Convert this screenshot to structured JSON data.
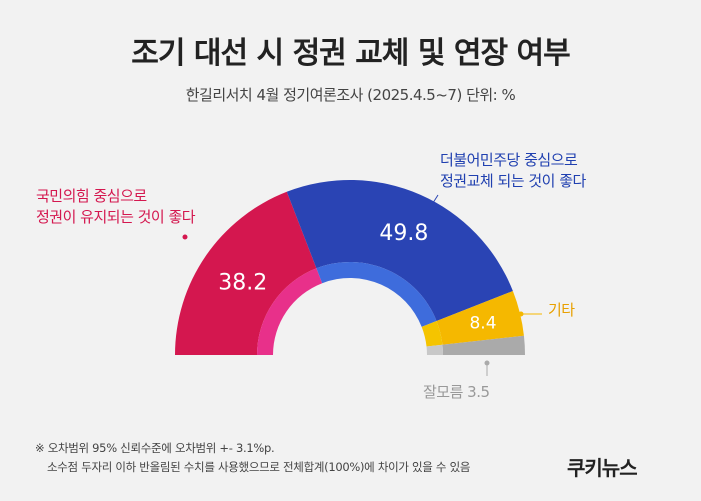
{
  "header": {
    "title": "조기 대선 시 정권 교체 및 연장 여부",
    "subtitle": "한길리서치 4월 정기여론조사 (2025.4.5~7) 단위: %"
  },
  "chart_data": {
    "type": "pie",
    "style": "semicircle-donut",
    "unit": "%",
    "slices": [
      {
        "label": "국민의힘 중심으로 정권이 유지되는 것이 좋다",
        "label_lines": [
          "국민의힘 중심으로",
          "정권이 유지되는 것이 좋다"
        ],
        "value": 38.2,
        "color": "#d4174f",
        "inner_color": "#e8308a"
      },
      {
        "label": "더불어민주당 중심으로 정권교체 되는 것이 좋다",
        "label_lines": [
          "더불어민주당 중심으로",
          "정권교체 되는 것이 좋다"
        ],
        "value": 49.8,
        "color": "#2a44b4",
        "inner_color": "#3e6cdc"
      },
      {
        "label": "기타",
        "label_lines": [
          "기타"
        ],
        "value": 8.4,
        "color": "#f5b800",
        "inner_color": "#f5c400"
      },
      {
        "label": "잘모름",
        "label_lines": [
          "잘모름 3.5"
        ],
        "value": 3.5,
        "color": "#aaaaaa",
        "inner_color": "#c8c8c8"
      }
    ]
  },
  "footnote": {
    "line1": "※ 오차범위 95% 신뢰수준에 오차범위 +- 3.1%p.",
    "line2": "소수점 두자리 이하 반올림된 수치를 사용했으므로 전체합계(100%)에 차이가 있을 수 있음"
  },
  "brand": {
    "logo_text": "쿠키뉴스"
  }
}
